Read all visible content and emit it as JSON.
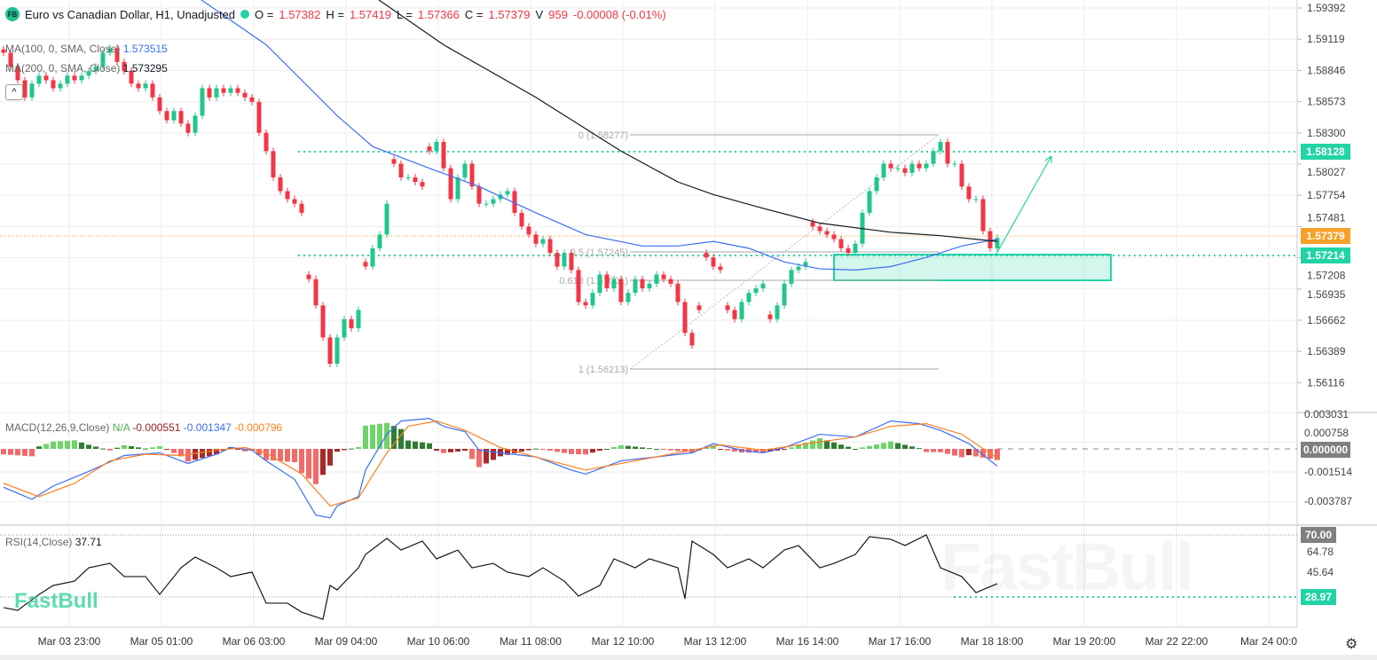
{
  "header": {
    "symbol_icon": "FB",
    "title": "Euro vs Canadian Dollar, H1, Unadjusted",
    "o_label": "O =",
    "o": "1.57382",
    "h_label": "H =",
    "h": "1.57419",
    "l_label": "L =",
    "l": "1.57366",
    "c_label": "C =",
    "c": "1.57379",
    "v_label": "V",
    "v": "959",
    "change": "-0.00008 (-0.01%)"
  },
  "indicators": {
    "ma100_label": "MA(100, 0, SMA, Close)",
    "ma100_value": "1.573515",
    "ma200_label": "MA(200, 0, SMA, Close)",
    "ma200_value": "1.573295",
    "collapse": "^",
    "macd_label": "MACD(12,26,9,Close)",
    "macd_na": "N/A",
    "macd_hist": "-0.000551",
    "macd_line": "-0.001347",
    "macd_signal": "-0.000796",
    "rsi_label": "RSI(14,Close)",
    "rsi_value": "37.71"
  },
  "price_axis": [
    "1.59392",
    "1.59119",
    "1.58846",
    "1.58573",
    "1.58300",
    "1.58027",
    "1.57754",
    "1.57481",
    "1.57208",
    "1.56935",
    "1.56662",
    "1.56389",
    "1.56116"
  ],
  "macd_axis": [
    "0.003031",
    "0.000758",
    "-0.001514",
    "-0.003787"
  ],
  "rsi_axis": [
    "64.78",
    "45.64"
  ],
  "tags": {
    "resistance": "1.58128",
    "last": "1.57379",
    "support": "1.57214",
    "macd_zero": "0.000000",
    "rsi_70": "70.00",
    "rsi_low": "28.97"
  },
  "fib": {
    "l0": "0 (1.58277)",
    "l05": "0.5 (1.57245)",
    "l0618": "0.618 (1.57001)",
    "l1": "1 (1.56213)"
  },
  "time_axis": [
    "Mar 03 23:00",
    "Mar 05 01:00",
    "Mar 06 03:00",
    "Mar 09 04:00",
    "Mar 10 06:00",
    "Mar 11 08:00",
    "Mar 12 10:00",
    "Mar 13 12:00",
    "Mar 16 14:00",
    "Mar 17 16:00",
    "Mar 18 18:00",
    "Mar 19 20:00",
    "Mar 22 22:00",
    "Mar 24 00:0"
  ],
  "watermark": "FastBull",
  "logo": "FastBull",
  "colors": {
    "up": "#089981",
    "up_fill": "#22c68b",
    "down": "#f23645",
    "ma100": "#3b6ef5",
    "ma200": "#131722",
    "macd": "#3b6ef5",
    "signal": "#ff7f1e",
    "level": "#22d3a6",
    "last": "#f7a128"
  },
  "chart_data": {
    "type": "candlestick",
    "bar_interval": "2h",
    "closes": [
      1.59,
      1.5888,
      1.5876,
      1.5861,
      1.5873,
      1.588,
      1.5876,
      1.5869,
      1.5873,
      1.588,
      1.5876,
      1.588,
      1.5884,
      1.5888,
      1.59,
      1.5904,
      1.5892,
      1.5884,
      1.5873,
      1.5869,
      1.5873,
      1.5861,
      1.5849,
      1.5841,
      1.5849,
      1.5838,
      1.583,
      1.5845,
      1.5869,
      1.5861,
      1.5869,
      1.5865,
      1.5869,
      1.5865,
      1.5861,
      1.5857,
      1.583,
      1.5814,
      1.5791,
      1.5779,
      1.5772,
      1.5768,
      1.576,
      1.5702,
      1.5679,
      1.5651,
      1.5628,
      1.5651,
      1.5667,
      1.5659,
      1.5675,
      1.5713,
      1.5729,
      1.5741,
      1.5768,
      1.5803,
      1.5791,
      1.5791,
      1.5787,
      1.5783,
      1.5814,
      1.5822,
      1.5799,
      1.5772,
      1.5791,
      1.5803,
      1.5783,
      1.5768,
      1.5768,
      1.5772,
      1.5776,
      1.5779,
      1.576,
      1.5748,
      1.5741,
      1.5733,
      1.5737,
      1.5725,
      1.5713,
      1.5725,
      1.571,
      1.5682,
      1.5679,
      1.569,
      1.5706,
      1.5694,
      1.5702,
      1.5682,
      1.569,
      1.5702,
      1.5694,
      1.5698,
      1.5706,
      1.5702,
      1.5698,
      1.5682,
      1.5655,
      1.5644,
      1.5675,
      1.5721,
      1.5713,
      1.571,
      1.5675,
      1.5667,
      1.5682,
      1.569,
      1.5694,
      1.5698,
      1.5667,
      1.5679,
      1.5698,
      1.571,
      1.5713,
      1.5717,
      1.5748,
      1.5744,
      1.5741,
      1.5737,
      1.5729,
      1.5725,
      1.5733,
      1.576,
      1.5779,
      1.5791,
      1.5803,
      1.5799,
      1.5799,
      1.5795,
      1.5803,
      1.5799,
      1.5803,
      1.5814,
      1.5822,
      1.5803,
      1.5803,
      1.5783,
      1.5772,
      1.5772,
      1.5744,
      1.5729,
      1.5738
    ],
    "ma100": [
      [
        27,
        1.595
      ],
      [
        37,
        1.5907
      ],
      [
        47,
        1.5845
      ],
      [
        52,
        1.5818
      ],
      [
        60,
        1.5799
      ],
      [
        67,
        1.5783
      ],
      [
        75,
        1.576
      ],
      [
        82,
        1.5741
      ],
      [
        90,
        1.5731
      ],
      [
        95,
        1.5731
      ],
      [
        100,
        1.5735
      ],
      [
        105,
        1.5729
      ],
      [
        110,
        1.5717
      ],
      [
        115,
        1.5711
      ],
      [
        120,
        1.571
      ],
      [
        125,
        1.5713
      ],
      [
        130,
        1.5721
      ],
      [
        135,
        1.5731
      ],
      [
        140,
        1.5737
      ]
    ],
    "ma200": [
      [
        52,
        1.595
      ],
      [
        62,
        1.5907
      ],
      [
        75,
        1.5861
      ],
      [
        87,
        1.5814
      ],
      [
        95,
        1.5787
      ],
      [
        100,
        1.5776
      ],
      [
        107,
        1.5764
      ],
      [
        115,
        1.5751
      ],
      [
        125,
        1.5743
      ],
      [
        132,
        1.574
      ],
      [
        140,
        1.5735
      ]
    ],
    "macd": [
      [
        0,
        -0.0029
      ],
      [
        4,
        -0.0038
      ],
      [
        7,
        -0.0028
      ],
      [
        12,
        -0.0017
      ],
      [
        17,
        -0.0005
      ],
      [
        22,
        -0.0003
      ],
      [
        26,
        -0.0011
      ],
      [
        30,
        -0.0004
      ],
      [
        32,
        0.0001
      ],
      [
        35,
        -0.0001
      ],
      [
        37,
        -0.0009
      ],
      [
        41,
        -0.0023
      ],
      [
        44,
        -0.005
      ],
      [
        46,
        -0.0052
      ],
      [
        47,
        -0.0043
      ],
      [
        50,
        -0.0036
      ],
      [
        51,
        -0.0016
      ],
      [
        54,
        0.0011
      ],
      [
        56,
        0.0021
      ],
      [
        60,
        0.0023
      ],
      [
        62,
        0.0017
      ],
      [
        65,
        0.0013
      ],
      [
        67,
        -0.0001
      ],
      [
        70,
        -0.0003
      ],
      [
        75,
        -0.0006
      ],
      [
        80,
        -0.0016
      ],
      [
        82,
        -0.0019
      ],
      [
        87,
        -0.0009
      ],
      [
        92,
        -0.0006
      ],
      [
        97,
        -0.0003
      ],
      [
        100,
        0.0004
      ],
      [
        104,
        -0.0001
      ],
      [
        107,
        -0.0003
      ],
      [
        110,
        0.0001
      ],
      [
        115,
        0.0011
      ],
      [
        120,
        0.0009
      ],
      [
        125,
        0.0021
      ],
      [
        129,
        0.0019
      ],
      [
        132,
        0.0014
      ],
      [
        136,
        0.0004
      ],
      [
        140,
        -0.0013
      ]
    ],
    "signal": [
      [
        0,
        -0.0026
      ],
      [
        5,
        -0.0036
      ],
      [
        10,
        -0.0026
      ],
      [
        15,
        -0.0009
      ],
      [
        20,
        -0.0004
      ],
      [
        25,
        -0.0005
      ],
      [
        30,
        -0.0001
      ],
      [
        34,
        0.0001
      ],
      [
        37,
        -0.0003
      ],
      [
        42,
        -0.0019
      ],
      [
        46,
        -0.0043
      ],
      [
        50,
        -0.0037
      ],
      [
        54,
        -0.0003
      ],
      [
        57,
        0.0017
      ],
      [
        61,
        0.0021
      ],
      [
        65,
        0.0014
      ],
      [
        70,
        0.0001
      ],
      [
        77,
        -0.0009
      ],
      [
        82,
        -0.0016
      ],
      [
        87,
        -0.0011
      ],
      [
        95,
        -0.0003
      ],
      [
        101,
        0.0003
      ],
      [
        107,
        -0.0001
      ],
      [
        112,
        0.0003
      ],
      [
        120,
        0.0009
      ],
      [
        125,
        0.0017
      ],
      [
        130,
        0.0019
      ],
      [
        135,
        0.0011
      ],
      [
        140,
        -0.0007
      ]
    ],
    "rsi": [
      [
        0,
        22.0
      ],
      [
        2,
        20.2
      ],
      [
        5,
        30.7
      ],
      [
        7,
        36.6
      ],
      [
        10,
        39.5
      ],
      [
        12,
        48.3
      ],
      [
        15,
        51.2
      ],
      [
        17,
        42.5
      ],
      [
        20,
        42.5
      ],
      [
        22,
        30.7
      ],
      [
        25,
        48.3
      ],
      [
        27,
        55.4
      ],
      [
        30,
        48.3
      ],
      [
        32,
        42.5
      ],
      [
        35,
        45.4
      ],
      [
        37,
        24.9
      ],
      [
        40,
        24.9
      ],
      [
        42,
        19.0
      ],
      [
        45,
        14.3
      ],
      [
        46,
        36.6
      ],
      [
        47,
        33.7
      ],
      [
        50,
        48.3
      ],
      [
        51,
        57.1
      ],
      [
        54,
        67.7
      ],
      [
        56,
        60.0
      ],
      [
        59,
        65.9
      ],
      [
        61,
        54.2
      ],
      [
        64,
        60.0
      ],
      [
        66,
        48.3
      ],
      [
        69,
        51.2
      ],
      [
        71,
        45.4
      ],
      [
        74,
        42.5
      ],
      [
        76,
        48.3
      ],
      [
        79,
        39.5
      ],
      [
        81,
        29.6
      ],
      [
        84,
        36.6
      ],
      [
        86,
        54.2
      ],
      [
        89,
        48.3
      ],
      [
        91,
        54.2
      ],
      [
        95,
        48.3
      ],
      [
        96,
        27.8
      ],
      [
        97,
        65.9
      ],
      [
        100,
        57.1
      ],
      [
        102,
        48.3
      ],
      [
        105,
        54.2
      ],
      [
        107,
        48.3
      ],
      [
        110,
        60.0
      ],
      [
        112,
        63.0
      ],
      [
        115,
        48.3
      ],
      [
        117,
        51.2
      ],
      [
        120,
        57.1
      ],
      [
        122,
        68.8
      ],
      [
        125,
        67.1
      ],
      [
        127,
        63.0
      ],
      [
        130,
        70.0
      ],
      [
        132,
        48.3
      ],
      [
        135,
        42.5
      ],
      [
        137,
        31.9
      ],
      [
        140,
        37.8
      ]
    ]
  }
}
